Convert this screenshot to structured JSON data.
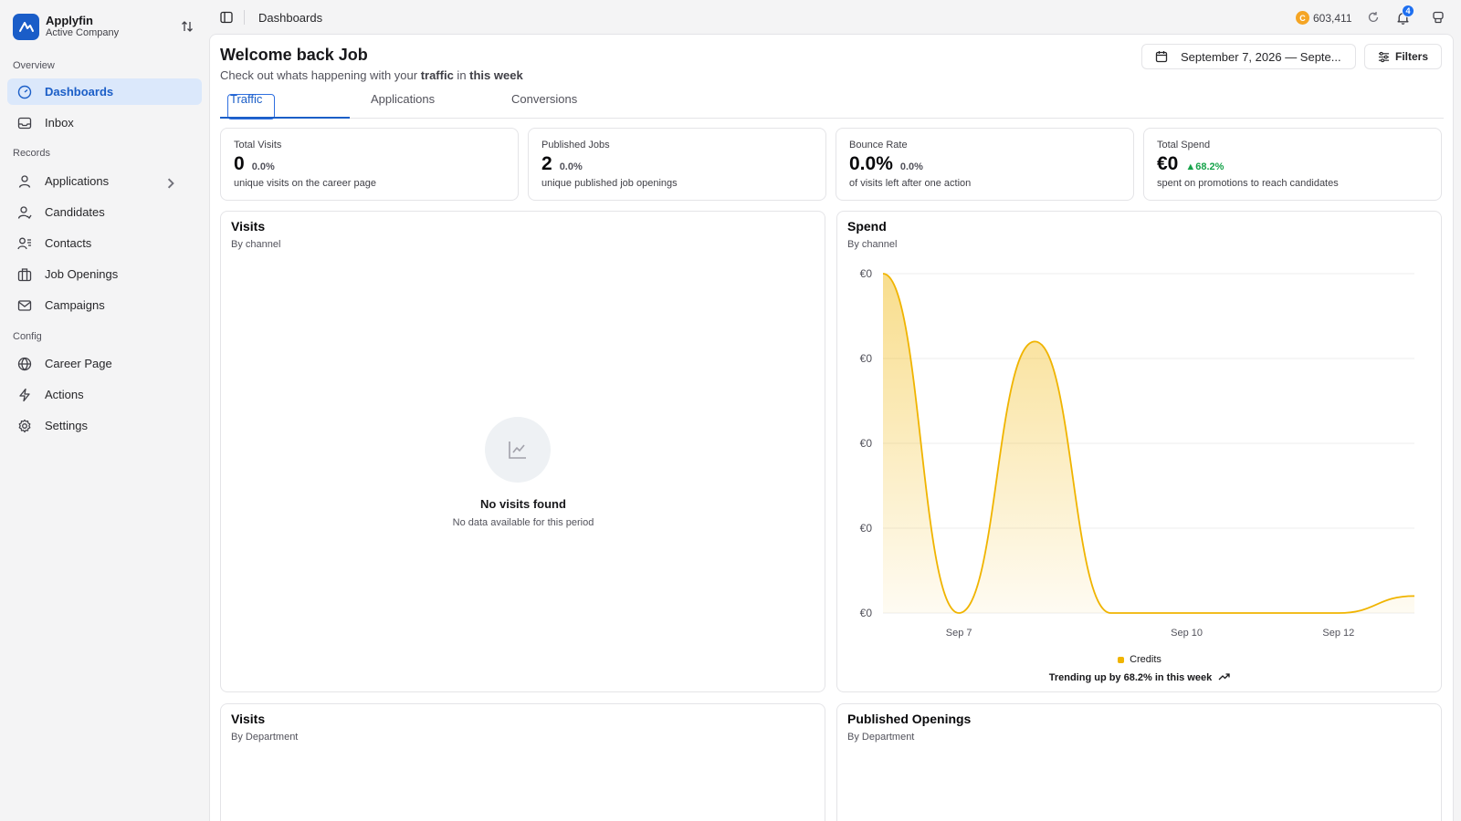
{
  "brand": {
    "name": "Applyfin",
    "company": "Active Company"
  },
  "nav": {
    "overview_label": "Overview",
    "records_label": "Records",
    "config_label": "Config",
    "items": [
      {
        "label": "Dashboards",
        "icon": "gauge-icon"
      },
      {
        "label": "Inbox",
        "icon": "inbox-icon"
      },
      {
        "label": "Applications",
        "icon": "user-icon"
      },
      {
        "label": "Candidates",
        "icon": "user-round-icon"
      },
      {
        "label": "Contacts",
        "icon": "contacts-icon"
      },
      {
        "label": "Job Openings",
        "icon": "briefcase-icon"
      },
      {
        "label": "Campaigns",
        "icon": "mail-icon"
      },
      {
        "label": "Career Page",
        "icon": "globe-icon"
      },
      {
        "label": "Actions",
        "icon": "bolt-icon"
      },
      {
        "label": "Settings",
        "icon": "gear-icon"
      }
    ]
  },
  "topbar": {
    "title": "Dashboards",
    "credits": "603,411",
    "coin_letter": "C",
    "notifications": "4"
  },
  "header": {
    "welcome": "Welcome back Job",
    "sub_prefix": "Check out whats happening with your ",
    "sub_bold1": "traffic",
    "sub_mid": " in ",
    "sub_bold2": "this week",
    "date_range": "September 7, 2026 — Septe...",
    "filters": "Filters"
  },
  "tabs": [
    "Traffic",
    "Applications",
    "Conversions"
  ],
  "stats": [
    {
      "label": "Total Visits",
      "value": "0",
      "delta": "0.0%",
      "desc": "unique visits on the career page"
    },
    {
      "label": "Published Jobs",
      "value": "2",
      "delta": "0.0%",
      "desc": "unique published job openings"
    },
    {
      "label": "Bounce Rate",
      "value": "0.0%",
      "delta": "0.0%",
      "desc": "of visits left after one action"
    },
    {
      "label": "Total Spend",
      "value": "€0",
      "delta": "▲68.2%",
      "desc": "spent on promotions to reach candidates"
    }
  ],
  "visits_card": {
    "title": "Visits",
    "sub": "By channel",
    "empty_title": "No visits found",
    "empty_sub": "No data available for this period"
  },
  "spend_card": {
    "title": "Spend",
    "sub": "By channel",
    "legend": "Credits",
    "trend": "Trending up by 68.2% in this week"
  },
  "visits_dept_card": {
    "title": "Visits",
    "sub": "By Department"
  },
  "openings_card": {
    "title": "Published Openings",
    "sub": "By Department"
  },
  "colors": {
    "accent": "#1b5ec7",
    "series": "#f0b400",
    "up": "#16a34a"
  },
  "chart_data": {
    "type": "area",
    "title": "Spend",
    "subtitle": "By channel",
    "x": [
      "Sep 6",
      "Sep 7",
      "Sep 8",
      "Sep 9",
      "Sep 10",
      "Sep 11",
      "Sep 12",
      "Sep 13"
    ],
    "x_tick_labels": [
      "Sep 7",
      "Sep 10",
      "Sep 12"
    ],
    "y_tick_labels": [
      "€0",
      "€0",
      "€0",
      "€0",
      "€0"
    ],
    "series": [
      {
        "name": "Credits",
        "values": [
          4,
          0,
          3.2,
          0,
          0,
          0,
          0,
          0.2
        ]
      }
    ],
    "ylim": [
      0,
      4
    ],
    "grid": true,
    "legend_position": "bottom"
  }
}
